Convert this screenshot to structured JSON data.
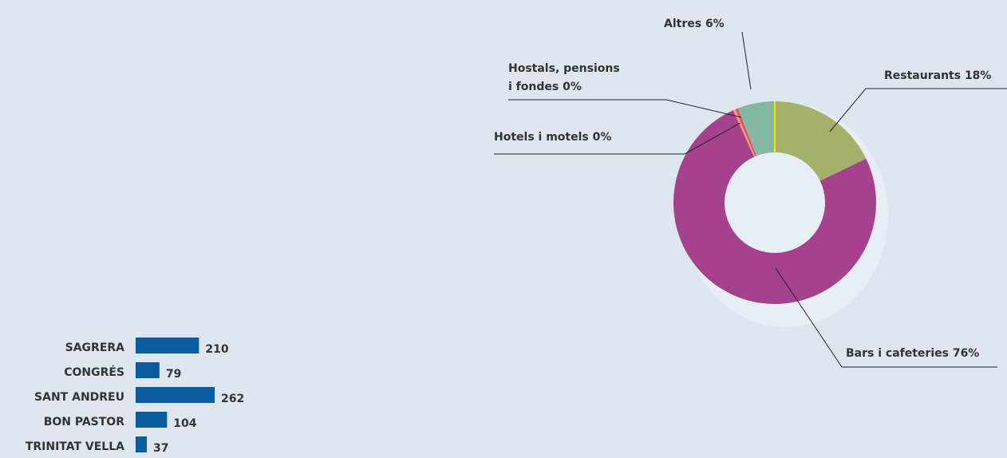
{
  "chart_data": [
    {
      "type": "hbar",
      "categories": [
        "SAGRERA",
        "CONGRÉS",
        "SANT ANDREU",
        "BON PASTOR",
        "TRINITAT VELLA"
      ],
      "values": [
        210,
        79,
        262,
        104,
        37
      ],
      "color": "#0b5c9e"
    },
    {
      "type": "donut",
      "categories": [
        "Restaurants",
        "Bars i cafeteries",
        "Hotels i motels",
        "Hostals, pensions i fondes",
        "Altres"
      ],
      "values": [
        18,
        76,
        0.4,
        0.4,
        6
      ],
      "value_labels": [
        "18%",
        "76%",
        "0%",
        "0%",
        "6%"
      ],
      "colors": [
        "#a2b26a",
        "#a6418e",
        "#f2a15a",
        "#e2467c",
        "#86b9a2"
      ]
    }
  ]
}
